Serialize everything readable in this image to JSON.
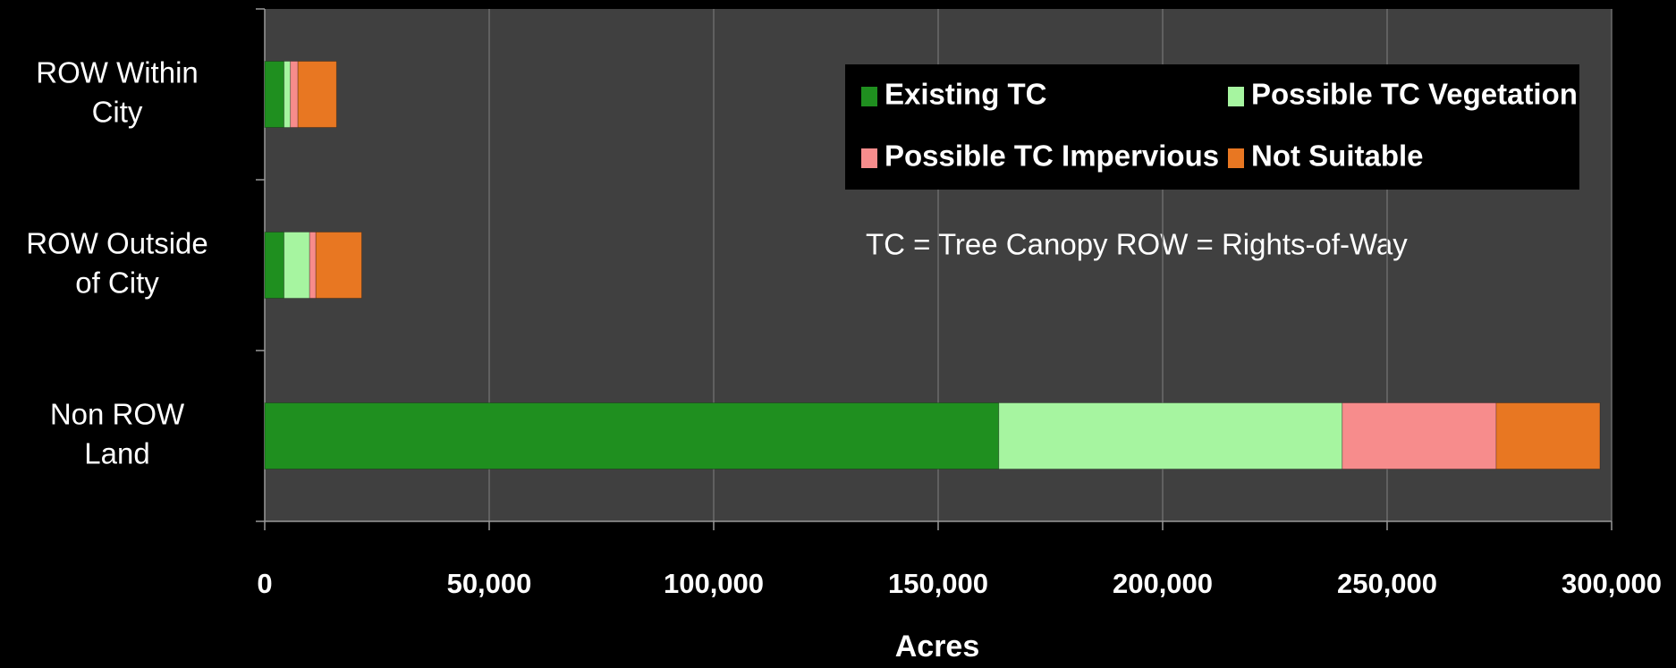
{
  "chart_data": {
    "type": "stacked_barh",
    "categories": [
      "ROW Within\nCity",
      "ROW Outside\nof City",
      "Non ROW\nLand"
    ],
    "series": [
      {
        "name": "Existing TC",
        "color": "#1f8f1f",
        "values": [
          4300,
          4300,
          163500
        ]
      },
      {
        "name": "Possible TC Vegetation",
        "color": "#a6f5a0",
        "values": [
          1400,
          5700,
          76500
        ]
      },
      {
        "name": "Possible TC Impervious",
        "color": "#f78c8c",
        "values": [
          1700,
          1400,
          34300
        ]
      },
      {
        "name": "Not Suitable",
        "color": "#e87722",
        "values": [
          8600,
          10200,
          23100
        ]
      }
    ],
    "xlim": [
      0,
      300000
    ],
    "xticks": [
      0,
      {
        "value": 50000,
        "label": "50,000"
      },
      {
        "value": 100000,
        "label": "100,000"
      },
      {
        "value": 150000,
        "label": "150,000"
      },
      {
        "value": 200000,
        "label": "200,000"
      },
      {
        "value": 250000,
        "label": "250,000"
      },
      {
        "value": 300000,
        "label": "300,000"
      }
    ],
    "xlabel": "Acres",
    "annotation": "TC = Tree Canopy  ROW = Rights-of-Way",
    "grid": true,
    "legend": "upper right"
  }
}
